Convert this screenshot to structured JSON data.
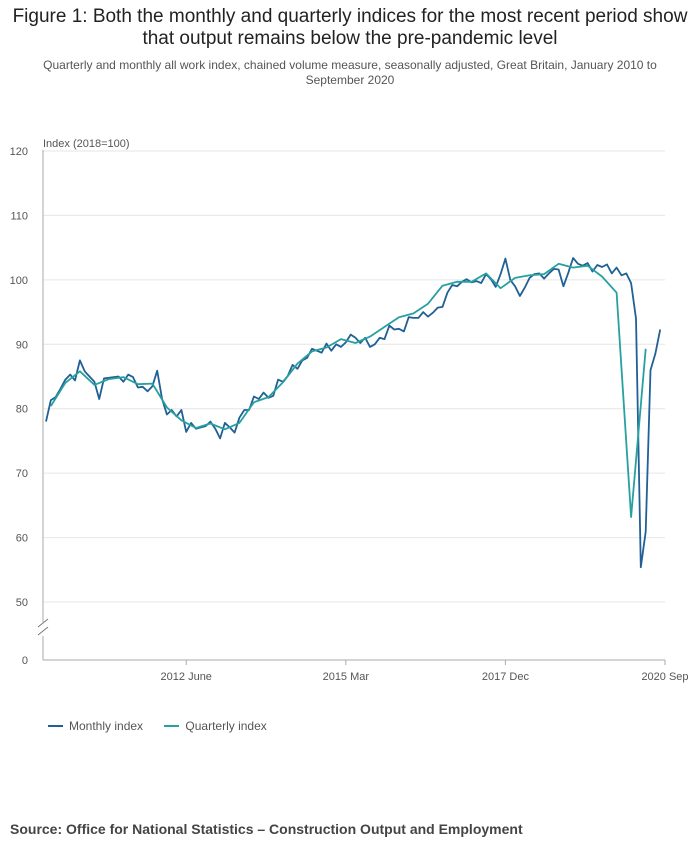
{
  "title": "Figure 1: Both the monthly and quarterly indices for the most recent period show that output remains below the pre-pandemic level",
  "subtitle": "Quarterly and monthly all work index, chained volume measure, seasonally adjusted, Great Britain, January 2010 to September 2020",
  "source": "Source: Office for National Statistics – Construction Output and Employment",
  "colors": {
    "monthly": "#206095",
    "quarterly": "#27a0a0",
    "grid": "#e6e6e6",
    "axis": "#aaaaaa"
  },
  "chart_data": {
    "type": "line",
    "ylabel": "Index (2018=100)",
    "ylim": [
      0,
      120
    ],
    "axis_break": true,
    "y_ticks": [
      0,
      50,
      60,
      70,
      80,
      90,
      100,
      110,
      120
    ],
    "x_ticks": [
      "2012 June",
      "2015 Mar",
      "2017 Dec",
      "2020 Sep"
    ],
    "grid": "horizontal",
    "legend_position": "bottom-left",
    "series": [
      {
        "name": "Monthly index",
        "start": "2010-01",
        "frequency": "monthly",
        "values": [
          78.0,
          81.3,
          81.8,
          83.1,
          84.5,
          85.3,
          84.4,
          87.5,
          85.8,
          85.0,
          84.2,
          81.5,
          84.7,
          84.8,
          84.9,
          85.0,
          84.2,
          85.3,
          84.9,
          83.3,
          83.4,
          82.7,
          83.5,
          85.9,
          81.5,
          79.1,
          79.8,
          78.8,
          79.8,
          76.4,
          77.8,
          76.9,
          77.1,
          77.3,
          78.0,
          76.9,
          75.4,
          77.8,
          77.1,
          76.3,
          78.6,
          79.8,
          79.8,
          81.9,
          81.5,
          82.5,
          81.7,
          82.0,
          84.5,
          84.2,
          85.1,
          86.8,
          86.2,
          87.5,
          87.9,
          89.3,
          89.0,
          88.7,
          90.1,
          89.0,
          90.0,
          89.6,
          90.3,
          91.5,
          91.0,
          90.2,
          91.0,
          89.6,
          90.0,
          91.0,
          90.8,
          92.9,
          92.3,
          92.4,
          92.0,
          94.2,
          94.1,
          94.1,
          95.0,
          94.3,
          94.9,
          95.7,
          95.8,
          98.0,
          99.2,
          99.0,
          99.7,
          100.1,
          99.6,
          99.8,
          99.5,
          100.9,
          100.1,
          98.9,
          100.9,
          103.3,
          100.0,
          99.0,
          97.5,
          98.8,
          100.3,
          100.9,
          101.0,
          100.2,
          101.0,
          101.7,
          101.6,
          99.0,
          101.1,
          103.4,
          102.5,
          102.2,
          102.6,
          101.3,
          102.3,
          102.0,
          102.4,
          101.0,
          101.9,
          100.7,
          101.0,
          99.5,
          94.0,
          55.4,
          60.9,
          86.0,
          88.5,
          92.3
        ]
      },
      {
        "name": "Quarterly index",
        "start": "2010-02",
        "frequency": "quarterly",
        "values": [
          80.4,
          84.0,
          85.8,
          83.7,
          84.6,
          84.9,
          83.8,
          83.9,
          80.2,
          78.2,
          77.0,
          77.7,
          76.8,
          77.8,
          81.0,
          81.8,
          84.1,
          87.0,
          88.9,
          89.5,
          90.8,
          90.2,
          91.2,
          92.7,
          94.2,
          94.8,
          96.3,
          99.1,
          99.7,
          99.7,
          101.0,
          98.7,
          100.3,
          100.7,
          100.9,
          102.5,
          101.9,
          102.2,
          100.5,
          98.0,
          63.2,
          89.3
        ]
      }
    ]
  }
}
